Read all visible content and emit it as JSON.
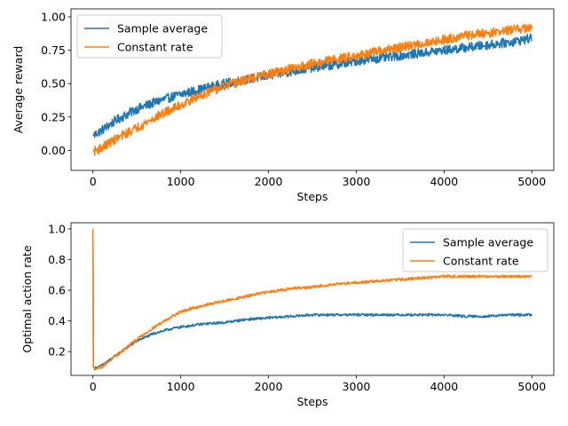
{
  "chart_data": [
    {
      "type": "line",
      "title": "",
      "xlabel": "Steps",
      "ylabel": "Average reward",
      "xlim": [
        -250,
        5250
      ],
      "ylim": [
        -0.15,
        1.06
      ],
      "xticks": [
        0,
        1000,
        2000,
        3000,
        4000,
        5000
      ],
      "xtick_labels": [
        "0",
        "1000",
        "2000",
        "3000",
        "4000",
        "5000"
      ],
      "yticks": [
        0.0,
        0.25,
        0.5,
        0.75,
        1.0
      ],
      "ytick_labels": [
        "0.00",
        "0.25",
        "0.50",
        "0.75",
        "1.00"
      ],
      "grid": false,
      "legend_position": "top-left",
      "x": [
        0,
        100,
        250,
        500,
        750,
        1000,
        1250,
        1500,
        1750,
        2000,
        2250,
        2500,
        2750,
        3000,
        3250,
        3500,
        3750,
        4000,
        4250,
        4500,
        4750,
        5000
      ],
      "series": [
        {
          "name": "Sample average",
          "color": "#1f77b4",
          "values": [
            0.11,
            0.15,
            0.22,
            0.31,
            0.37,
            0.42,
            0.46,
            0.5,
            0.53,
            0.56,
            0.59,
            0.62,
            0.64,
            0.67,
            0.69,
            0.71,
            0.73,
            0.75,
            0.77,
            0.79,
            0.81,
            0.84
          ],
          "noise": 0.035
        },
        {
          "name": "Constant rate",
          "color": "#ff7f0e",
          "values": [
            -0.01,
            0.02,
            0.08,
            0.17,
            0.26,
            0.34,
            0.42,
            0.48,
            0.53,
            0.57,
            0.61,
            0.65,
            0.68,
            0.71,
            0.74,
            0.77,
            0.8,
            0.83,
            0.86,
            0.88,
            0.9,
            0.92
          ],
          "noise": 0.035
        }
      ]
    },
    {
      "type": "line",
      "title": "",
      "xlabel": "Steps",
      "ylabel": "Optimal action rate",
      "xlim": [
        -250,
        5250
      ],
      "ylim": [
        0.045,
        1.04
      ],
      "xticks": [
        0,
        1000,
        2000,
        3000,
        4000,
        5000
      ],
      "xtick_labels": [
        "0",
        "1000",
        "2000",
        "3000",
        "4000",
        "5000"
      ],
      "yticks": [
        0.2,
        0.4,
        0.6,
        0.8,
        1.0
      ],
      "ytick_labels": [
        "0.2",
        "0.4",
        "0.6",
        "0.8",
        "1.0"
      ],
      "grid": false,
      "legend_position": "top-right",
      "x": [
        0,
        5,
        20,
        100,
        300,
        500,
        700,
        900,
        1000,
        1250,
        1500,
        1750,
        2000,
        2250,
        2500,
        2750,
        3000,
        3250,
        3500,
        3750,
        4000,
        4250,
        4500,
        4750,
        5000
      ],
      "series": [
        {
          "name": "Sample average",
          "color": "#1f77b4",
          "values": [
            1.0,
            0.1,
            0.09,
            0.11,
            0.19,
            0.27,
            0.32,
            0.35,
            0.36,
            0.38,
            0.39,
            0.41,
            0.42,
            0.43,
            0.44,
            0.44,
            0.44,
            0.44,
            0.44,
            0.44,
            0.44,
            0.43,
            0.43,
            0.44,
            0.44
          ],
          "noise": 0.008
        },
        {
          "name": "Constant rate",
          "color": "#ff7f0e",
          "values": [
            1.0,
            0.1,
            0.09,
            0.1,
            0.19,
            0.28,
            0.36,
            0.43,
            0.46,
            0.5,
            0.53,
            0.56,
            0.59,
            0.61,
            0.62,
            0.64,
            0.65,
            0.66,
            0.67,
            0.68,
            0.69,
            0.69,
            0.69,
            0.69,
            0.69
          ],
          "noise": 0.009
        }
      ]
    }
  ]
}
